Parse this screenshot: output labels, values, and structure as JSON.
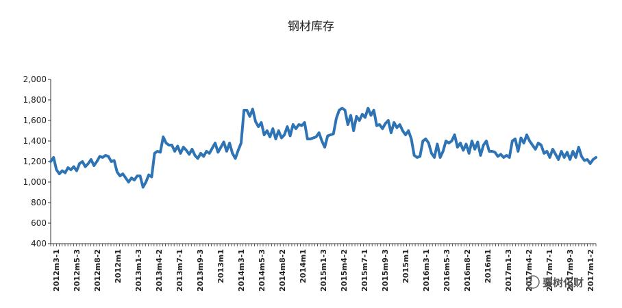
{
  "chart_data": {
    "type": "line",
    "title": "钢材库存",
    "xlabel": "",
    "ylabel": "",
    "ylim": [
      400,
      2000
    ],
    "y_ticks": [
      "2,000",
      "1,800",
      "1,600",
      "1,400",
      "1,200",
      "1,000",
      "800",
      "600",
      "400"
    ],
    "x_tick_labels": [
      "2012m3-1",
      "2012m5-3",
      "2012m8-2",
      "2012m1",
      "2013m1-3",
      "2013m4-2",
      "2013m7-1",
      "2013m9-3",
      "2013m1",
      "2014m3-1",
      "2014m5-3",
      "2014m8-2",
      "2014m1",
      "2015m1-3",
      "2015m4-2",
      "2015m7-1",
      "2015m9-3",
      "2015m1",
      "2016m3-1",
      "2016m5-3",
      "2016m8-2",
      "2016m1",
      "2017m1-3",
      "2017m4-2",
      "2017m7-1",
      "2017m9-3",
      "2017m1-2"
    ],
    "grid": false,
    "legend": "none",
    "line_color": "#2e74b5",
    "series": [
      {
        "values": [
          1200,
          1240,
          1120,
          1080,
          1110,
          1090,
          1140,
          1120,
          1150,
          1110,
          1180,
          1200,
          1150,
          1180,
          1220,
          1160,
          1200,
          1250,
          1240,
          1260,
          1250,
          1200,
          1210,
          1100,
          1060,
          1080,
          1040,
          1000,
          1040,
          1020,
          1060,
          1060,
          950,
          1000,
          1070,
          1050,
          1280,
          1300,
          1290,
          1440,
          1380,
          1360,
          1360,
          1300,
          1350,
          1280,
          1340,
          1310,
          1270,
          1320,
          1260,
          1230,
          1280,
          1250,
          1300,
          1280,
          1330,
          1380,
          1290,
          1340,
          1390,
          1300,
          1380,
          1280,
          1230,
          1310,
          1380,
          1700,
          1700,
          1640,
          1710,
          1590,
          1540,
          1580,
          1460,
          1500,
          1440,
          1520,
          1420,
          1500,
          1430,
          1460,
          1540,
          1450,
          1560,
          1520,
          1560,
          1550,
          1580,
          1420,
          1420,
          1430,
          1440,
          1480,
          1400,
          1340,
          1450,
          1460,
          1470,
          1620,
          1700,
          1720,
          1700,
          1560,
          1650,
          1500,
          1640,
          1600,
          1660,
          1630,
          1720,
          1650,
          1700,
          1550,
          1560,
          1520,
          1570,
          1600,
          1480,
          1580,
          1530,
          1560,
          1500,
          1460,
          1500,
          1420,
          1260,
          1240,
          1250,
          1400,
          1420,
          1380,
          1280,
          1240,
          1370,
          1240,
          1300,
          1400,
          1380,
          1400,
          1460,
          1340,
          1380,
          1310,
          1370,
          1280,
          1400,
          1320,
          1390,
          1260,
          1360,
          1400,
          1300,
          1300,
          1290,
          1250,
          1270,
          1240,
          1260,
          1240,
          1400,
          1420,
          1300,
          1430,
          1380,
          1460,
          1400,
          1360,
          1320,
          1380,
          1360,
          1280,
          1300,
          1240,
          1320,
          1270,
          1220,
          1300,
          1240,
          1290,
          1220,
          1300,
          1240,
          1340,
          1250,
          1210,
          1220,
          1180,
          1220,
          1240
        ]
      }
    ]
  },
  "watermark": {
    "text": "要树化财"
  }
}
